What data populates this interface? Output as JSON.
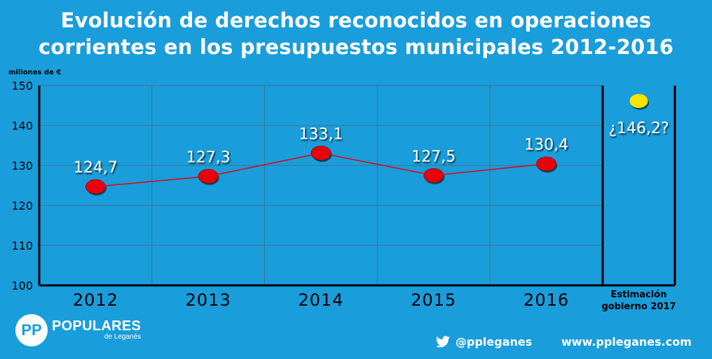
{
  "title_lines": [
    "Evolución de derechos reconocidos en operaciones",
    "corrientes en los presupuestos municipales 2012-2016"
  ],
  "colors": {
    "background": "#1A9DDB",
    "point": "#E8000B",
    "line": "#E8000B",
    "estimate_point": "#F4E400",
    "axis": "#000000",
    "text": "#ffffff"
  },
  "chart_data": {
    "type": "line",
    "ylabel": "millones de €",
    "ylim": [
      100,
      150
    ],
    "yticks": [
      100,
      110,
      120,
      130,
      140,
      150
    ],
    "grid": true,
    "categories": [
      "2012",
      "2013",
      "2014",
      "2015",
      "2016"
    ],
    "x_sublabels": [
      "",
      "",
      "",
      "",
      ""
    ],
    "values": [
      124.7,
      127.3,
      133.1,
      127.5,
      130.4
    ],
    "value_labels": [
      "124,7",
      "127,3",
      "133,1",
      "127,5",
      "130,4"
    ],
    "estimate": {
      "category_lines": [
        "Estimación",
        "gobierno 2017"
      ],
      "value": 146.2,
      "value_label": "¿146,2?"
    }
  },
  "footer": {
    "logo_mark": "PP",
    "logo_name": "POPULARES",
    "logo_sub": "de Leganés",
    "twitter_handle": "@ppleganes",
    "website": "www.ppleganes.com"
  }
}
